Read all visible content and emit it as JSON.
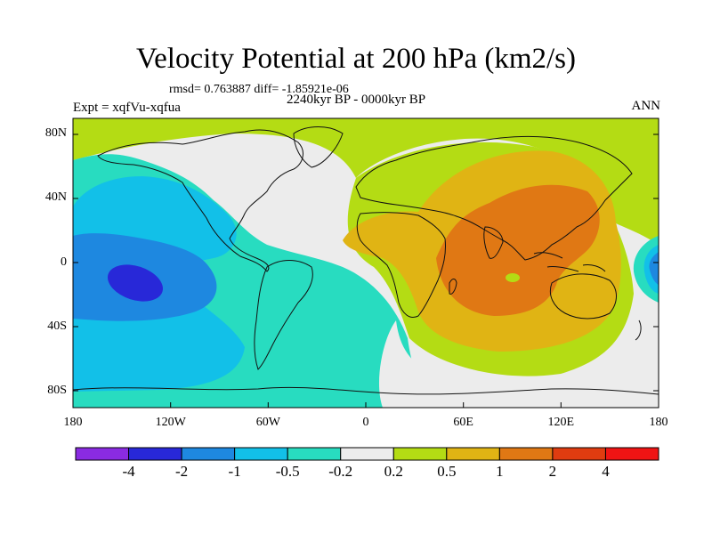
{
  "title": "Velocity Potential at 200 hPa (km2/s)",
  "stats": "rmsd= 0.763887 diff= -1.85921e-06",
  "experiment": "Expt = xqfVu-xqfua",
  "period": "2240kyr BP - 0000kyr BP",
  "season": "ANN",
  "lat_labels": [
    "80N",
    "40N",
    "0",
    "40S",
    "80S"
  ],
  "lon_labels": [
    "180",
    "120W",
    "60W",
    "0",
    "60E",
    "120E",
    "180"
  ],
  "colorbar": {
    "labels": [
      "-4",
      "-2",
      "-1",
      "-0.5",
      "-0.2",
      "0.2",
      "0.5",
      "1",
      "2",
      "4"
    ],
    "colors": [
      "#8a2be2",
      "#2828d8",
      "#1e88e0",
      "#12c0e8",
      "#28dcc0",
      "#ececec",
      "#b4dc14",
      "#e0b414",
      "#e07814",
      "#e03c10",
      "#f01414"
    ]
  },
  "map_colors": {
    "ocean_base": "#ececec",
    "teal": "#28dcc0",
    "cyan": "#12c0e8",
    "blue": "#1e88e0",
    "deep_blue": "#2828d8",
    "lime": "#b4dc14",
    "yellow": "#e0b414",
    "orange": "#e07814"
  }
}
